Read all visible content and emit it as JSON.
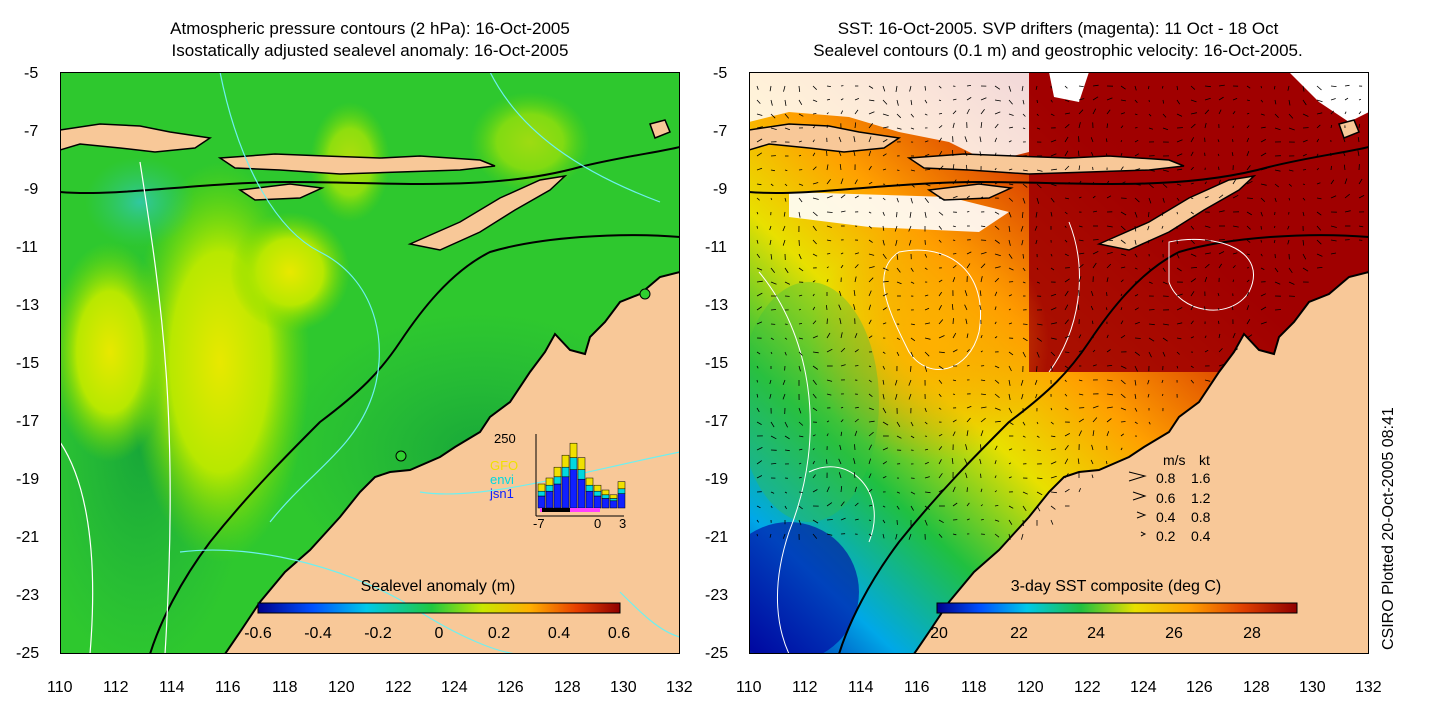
{
  "left_panel": {
    "title_line1": "Atmospheric pressure contours (2 hPa): 16-Oct-2005",
    "title_line2": "Isostatically adjusted sealevel anomaly: 16-Oct-2005",
    "y_ticks": [
      "-5",
      "-7",
      "-9",
      "-11",
      "-13",
      "-15",
      "-17",
      "-19",
      "-21",
      "-23",
      "-25"
    ],
    "x_ticks": [
      "110",
      "112",
      "114",
      "116",
      "118",
      "120",
      "122",
      "124",
      "126",
      "128",
      "130",
      "132"
    ],
    "colorbar": {
      "label": "Sealevel anomaly (m)",
      "ticks": [
        "-0.6",
        "-0.4",
        "-0.2",
        "0",
        "0.2",
        "0.4",
        "0.6"
      ]
    },
    "inset": {
      "ymax_label": "250",
      "x_labels": [
        "-7",
        "0",
        "3"
      ],
      "legend": [
        {
          "label": "GFO",
          "color": "#f0e000"
        },
        {
          "label": "envi",
          "color": "#00d8e0"
        },
        {
          "label": "jsn1",
          "color": "#1020ff"
        }
      ]
    }
  },
  "right_panel": {
    "title_line1": "SST: 16-Oct-2005. SVP drifters (magenta): 11 Oct - 18 Oct",
    "title_line2": "Sealevel contours (0.1 m) and geostrophic velocity: 16-Oct-2005.",
    "y_ticks": [
      "-5",
      "-7",
      "-9",
      "-11",
      "-13",
      "-15",
      "-17",
      "-19",
      "-21",
      "-23",
      "-25"
    ],
    "x_ticks": [
      "110",
      "112",
      "114",
      "116",
      "118",
      "120",
      "122",
      "124",
      "126",
      "128",
      "130",
      "132"
    ],
    "colorbar": {
      "label": "3-day SST composite (deg C)",
      "ticks": [
        "20",
        "22",
        "24",
        "26",
        "28"
      ]
    },
    "velocity_legend": {
      "header_ms": "m/s",
      "header_kt": "kt",
      "rows": [
        {
          "ms": "0.8",
          "kt": "1.6"
        },
        {
          "ms": "0.6",
          "kt": "1.2"
        },
        {
          "ms": "0.4",
          "kt": "0.8"
        },
        {
          "ms": "0.2",
          "kt": "0.4"
        }
      ]
    }
  },
  "credit": "CSIRO Plotted 20-Oct-2005 08:41",
  "colors": {
    "land": "#f8c898",
    "coast": "#000000",
    "ocean_green": "#28c828",
    "ocean_dark_green": "#20b040",
    "anomaly_yellow": "#c8e800",
    "sst_dark_red": "#a00000",
    "sst_orange": "#e86000",
    "sst_blue": "#0020a0",
    "cyan_contour": "#40e0d0"
  }
}
